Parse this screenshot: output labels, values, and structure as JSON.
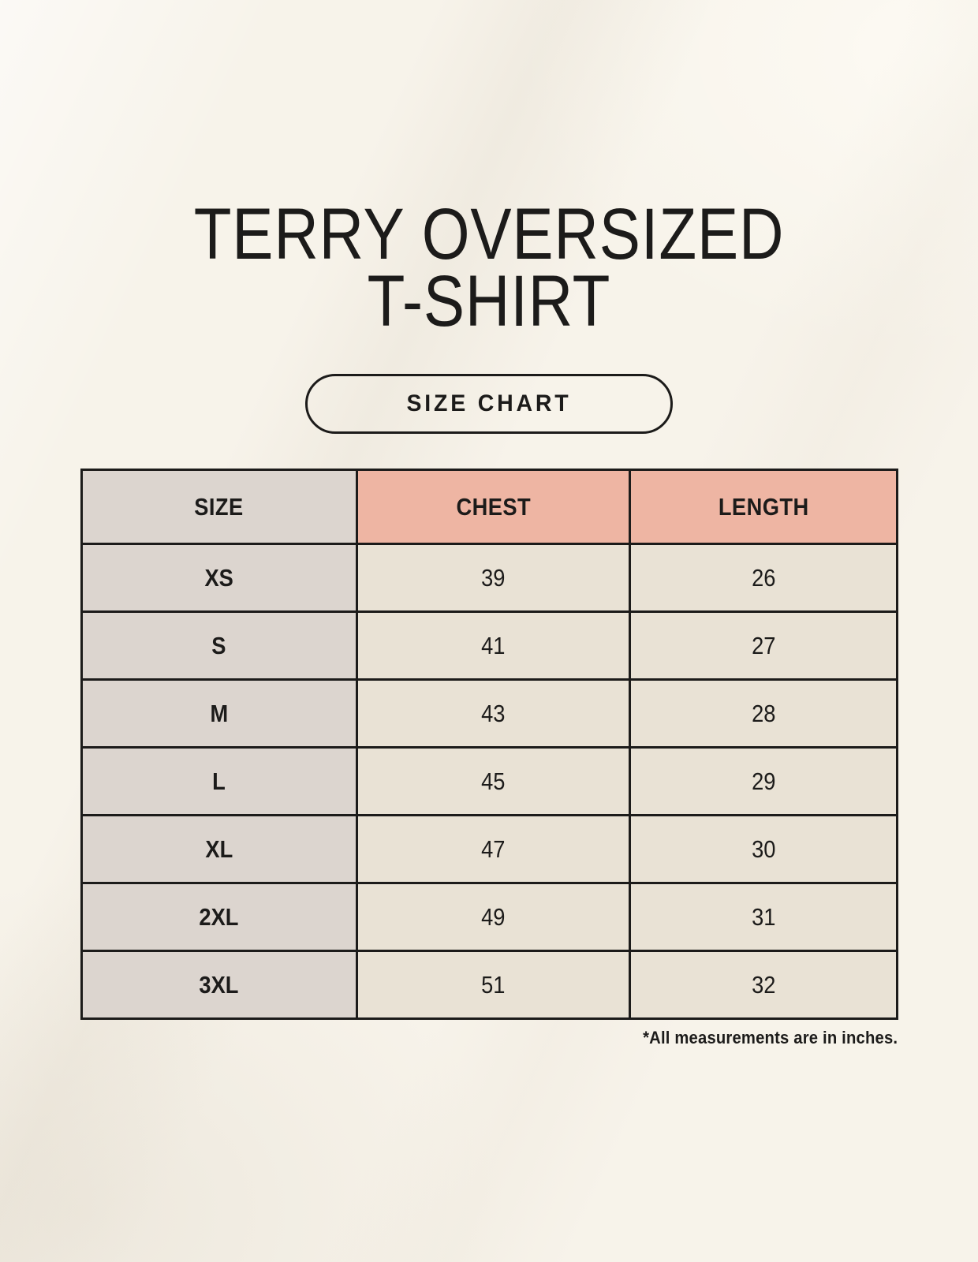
{
  "title": {
    "line1": "TERRY OVERSIZED",
    "line2": "T-SHIRT"
  },
  "size_chart_button": {
    "label": "SIZE CHART"
  },
  "table": {
    "columns": [
      "SIZE",
      "CHEST",
      "LENGTH"
    ],
    "rows": [
      {
        "size": "XS",
        "chest": "39",
        "length": "26"
      },
      {
        "size": "S",
        "chest": "41",
        "length": "27"
      },
      {
        "size": "M",
        "chest": "43",
        "length": "28"
      },
      {
        "size": "L",
        "chest": "45",
        "length": "29"
      },
      {
        "size": "XL",
        "chest": "47",
        "length": "30"
      },
      {
        "size": "2XL",
        "chest": "49",
        "length": "31"
      },
      {
        "size": "3XL",
        "chest": "51",
        "length": "32"
      }
    ]
  },
  "footnote": "*All measurements are in inches.",
  "colors": {
    "background": "#f7f3ea",
    "ink": "#1c1b1a",
    "accent_salmon": "#eeb5a3",
    "size_column_gray": "#dcd5cf",
    "cell_beige": "#e9e2d5",
    "table_border": "#1c1b1a"
  }
}
